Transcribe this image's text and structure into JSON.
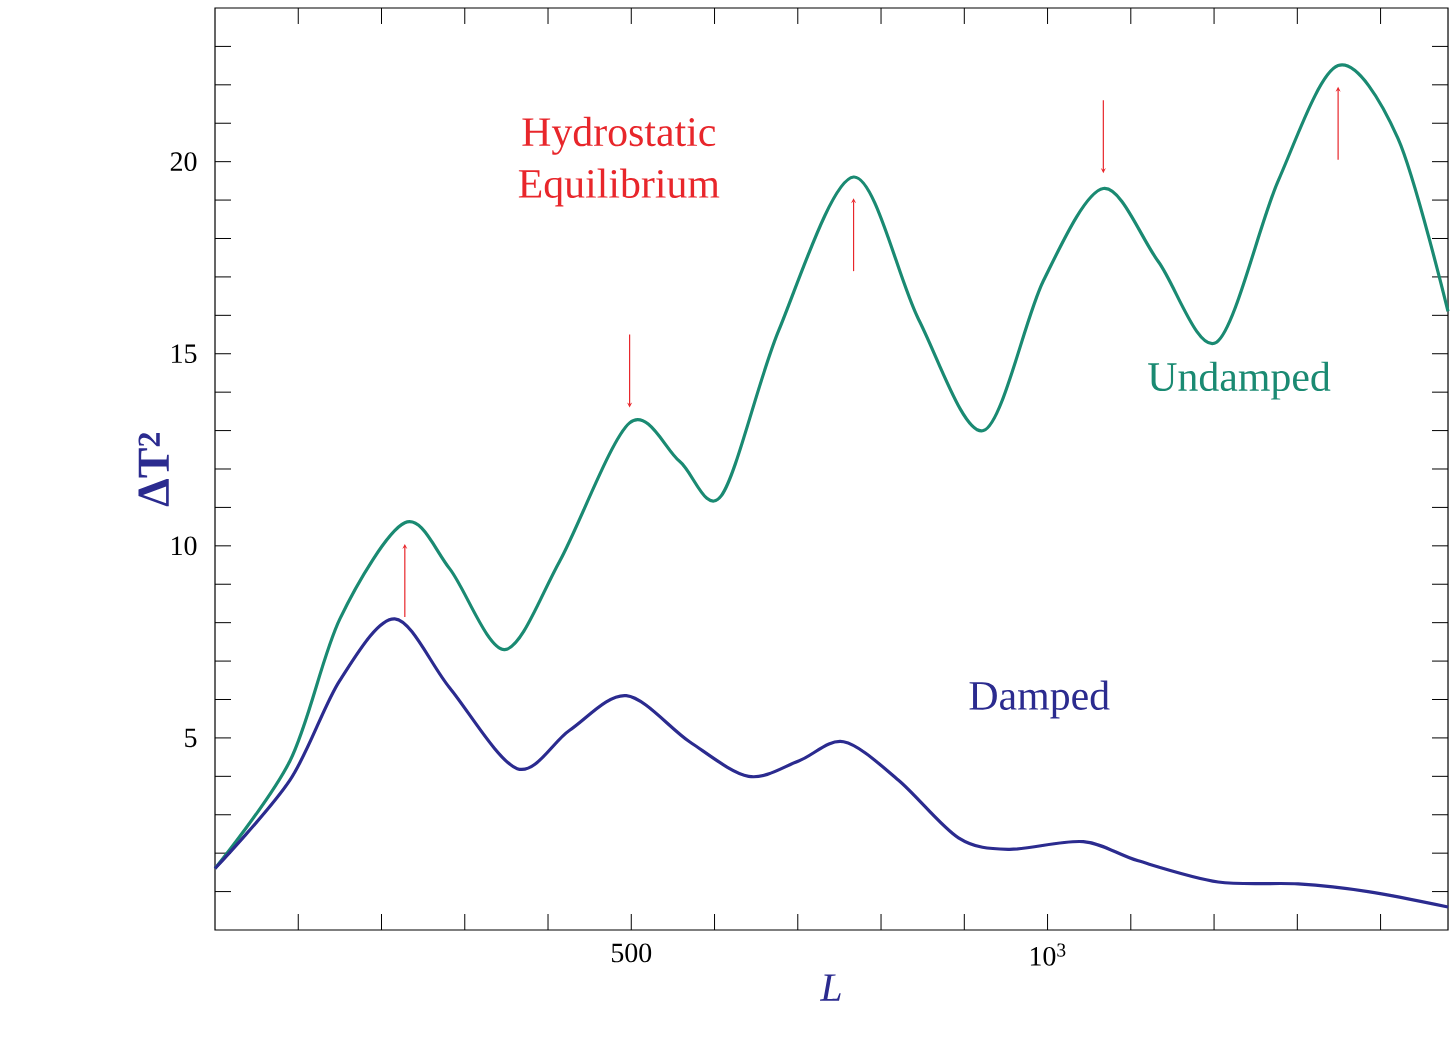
{
  "chart_data": {
    "type": "line",
    "xlabel": "L",
    "ylabel": "ΔT$^{2}$",
    "annotations": [
      "Hydrostatic Equilibrium"
    ],
    "xlim": [
      0,
      1481
    ],
    "ylim": [
      0,
      24
    ],
    "xticks": [
      {
        "value": 100,
        "label": null
      },
      {
        "value": 200,
        "label": null
      },
      {
        "value": 300,
        "label": null
      },
      {
        "value": 400,
        "label": null
      },
      500,
      {
        "value": 600,
        "label": null
      },
      {
        "value": 700,
        "label": null
      },
      {
        "value": 800,
        "label": null
      },
      {
        "value": 900,
        "label": null
      },
      {
        "value": 1000,
        "label": "10$^{3}$"
      },
      {
        "value": 1100,
        "label": null
      },
      {
        "value": 1200,
        "label": null
      },
      {
        "value": 1300,
        "label": null
      },
      {
        "value": 1400,
        "label": null
      }
    ],
    "yticks": [
      {
        "value": 1,
        "label": null
      },
      {
        "value": 2,
        "label": null
      },
      {
        "value": 3,
        "label": null
      },
      {
        "value": 4,
        "label": null
      },
      5,
      {
        "value": 6,
        "label": null
      },
      {
        "value": 7,
        "label": null
      },
      {
        "value": 8,
        "label": null
      },
      {
        "value": 9,
        "label": null
      },
      10,
      {
        "value": 11,
        "label": null
      },
      {
        "value": 12,
        "label": null
      },
      {
        "value": 13,
        "label": null
      },
      {
        "value": 14,
        "label": null
      },
      15,
      {
        "value": 16,
        "label": null
      },
      {
        "value": 17,
        "label": null
      },
      {
        "value": 18,
        "label": null
      },
      {
        "value": 19,
        "label": null
      },
      20,
      {
        "value": 21,
        "label": null
      },
      {
        "value": 22,
        "label": null
      },
      {
        "value": 23,
        "label": null
      }
    ],
    "series": [
      {
        "name": "Undamped",
        "color": "#1a8a72",
        "x": [
          0,
          90,
          150,
          228,
          282,
          348,
          414,
          498,
          558,
          608,
          677,
          767,
          845,
          923,
          995,
          1067,
          1133,
          1203,
          1277,
          1349,
          1421,
          1481
        ],
        "values": [
          1.6,
          4.4,
          8.1,
          10.6,
          9.4,
          7.3,
          9.6,
          13.2,
          12.2,
          11.3,
          15.6,
          19.6,
          15.9,
          13.0,
          16.9,
          19.3,
          17.4,
          15.3,
          19.5,
          22.5,
          20.6,
          16.1
        ]
      },
      {
        "name": "Damped",
        "color": "#2b2b8f",
        "x": [
          0,
          90,
          150,
          216,
          282,
          363,
          426,
          494,
          570,
          641,
          701,
          755,
          821,
          893,
          953,
          1043,
          1109,
          1205,
          1301,
          1385,
          1481
        ],
        "values": [
          1.6,
          3.9,
          6.5,
          8.1,
          6.3,
          4.2,
          5.2,
          6.1,
          4.9,
          4.0,
          4.4,
          4.9,
          3.9,
          2.4,
          2.1,
          2.3,
          1.8,
          1.25,
          1.2,
          1.0,
          0.6
        ]
      }
    ]
  }
}
